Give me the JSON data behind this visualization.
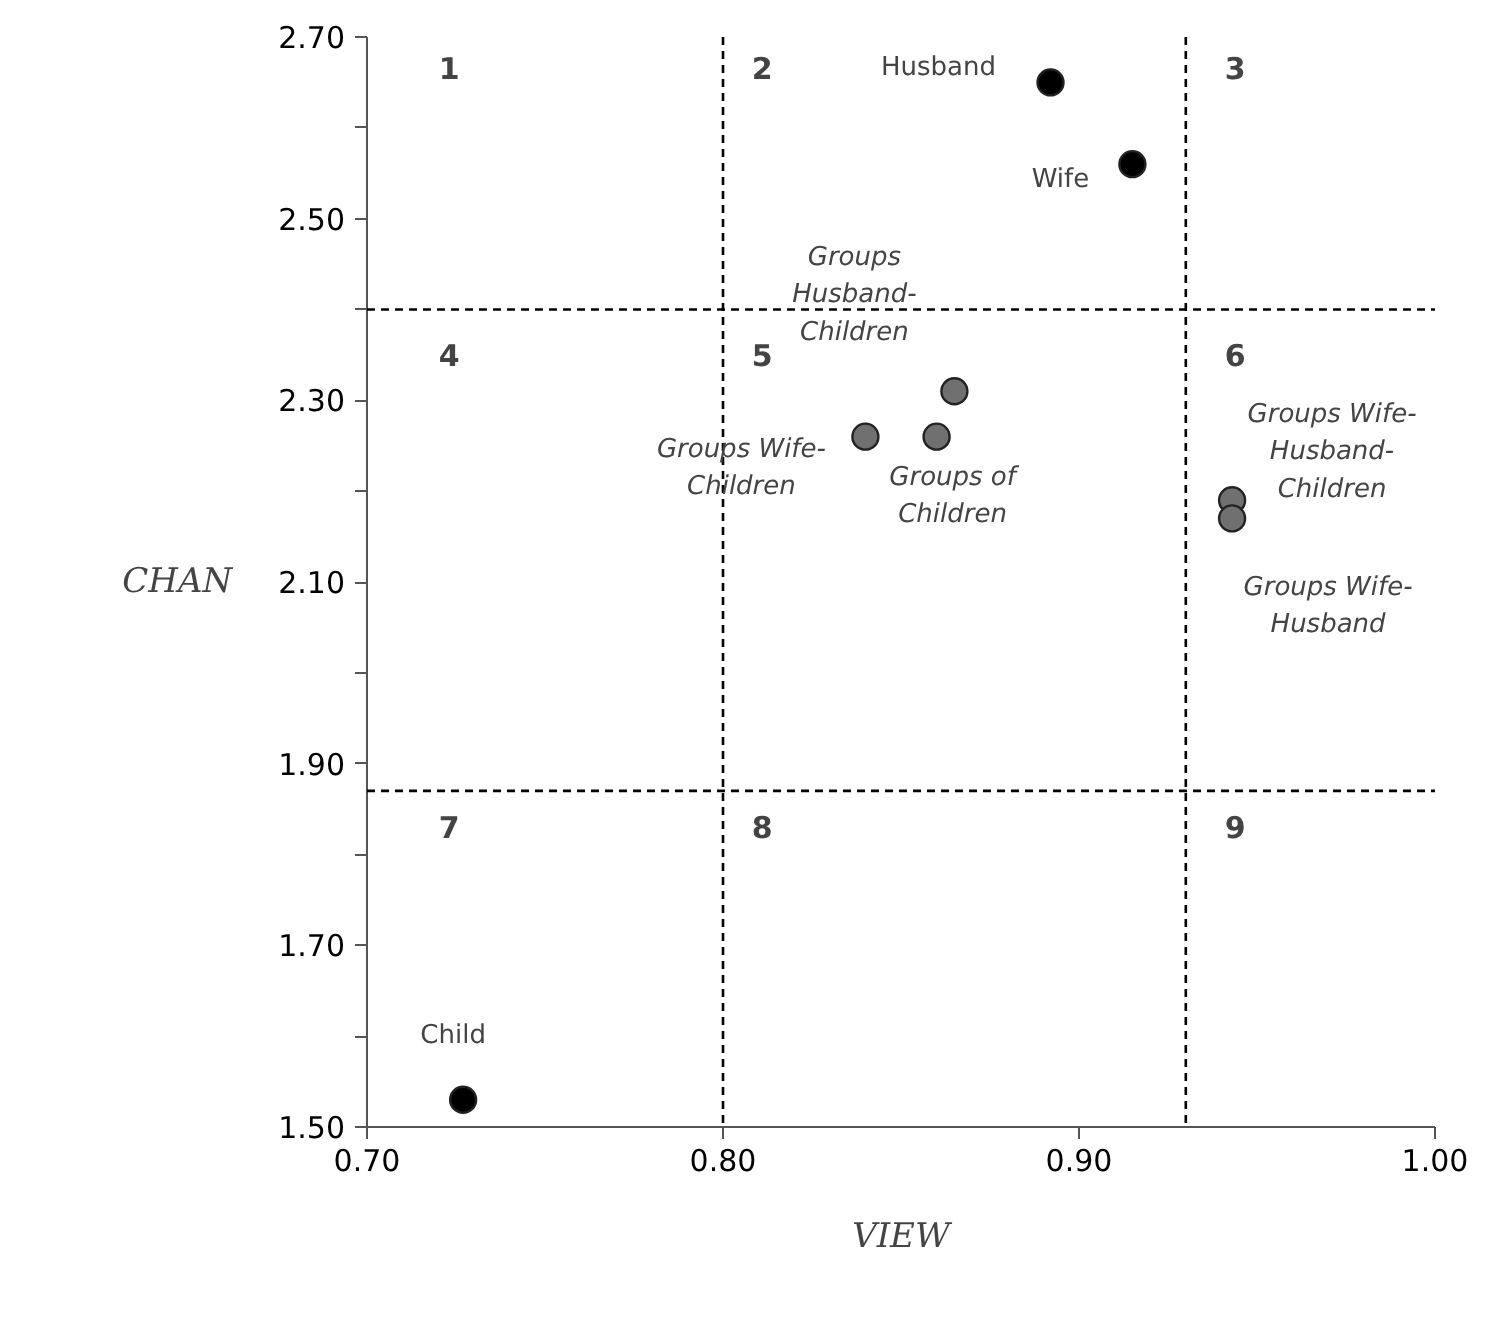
{
  "chart_data": {
    "type": "scatter",
    "xlabel": "VIEW",
    "ylabel": "CHAN",
    "xlim": [
      0.7,
      1.0
    ],
    "ylim": [
      1.5,
      2.7
    ],
    "xticks": [
      {
        "value": 0.7,
        "label": "0.70"
      },
      {
        "value": 0.8,
        "label": "0.80"
      },
      {
        "value": 0.9,
        "label": "0.90"
      },
      {
        "value": 1.0,
        "label": "1.00"
      }
    ],
    "yticks": [
      {
        "value": 1.5,
        "label": "1.50"
      },
      {
        "value": 1.6,
        "label": null
      },
      {
        "value": 1.7,
        "label": "1.70"
      },
      {
        "value": 1.8,
        "label": null
      },
      {
        "value": 1.9,
        "label": "1.90"
      },
      {
        "value": 2.0,
        "label": null
      },
      {
        "value": 2.1,
        "label": "2.10"
      },
      {
        "value": 2.2,
        "label": null
      },
      {
        "value": 2.3,
        "label": "2.30"
      },
      {
        "value": 2.4,
        "label": null
      },
      {
        "value": 2.5,
        "label": "2.50"
      },
      {
        "value": 2.6,
        "label": null
      },
      {
        "value": 2.7,
        "label": "2.70"
      }
    ],
    "grid": false,
    "marker": "circle",
    "series": [
      {
        "name": "Husband",
        "color": "#000000",
        "x": [
          0.892
        ],
        "values": [
          2.65
        ]
      },
      {
        "name": "Wife",
        "color": "#000000",
        "x": [
          0.915
        ],
        "values": [
          2.56
        ]
      },
      {
        "name": "Groups Husband-Children",
        "color": "#707070",
        "x": [
          0.865
        ],
        "values": [
          2.31
        ]
      },
      {
        "name": "Groups Wife-Children",
        "color": "#707070",
        "x": [
          0.84
        ],
        "values": [
          2.26
        ]
      },
      {
        "name": "Groups of Children",
        "color": "#707070",
        "x": [
          0.86
        ],
        "values": [
          2.26
        ]
      },
      {
        "name": "Groups Wife-Husband-Children",
        "color": "#707070",
        "x": [
          0.943
        ],
        "values": [
          2.19
        ]
      },
      {
        "name": "Groups Wife-Husband",
        "color": "#707070",
        "x": [
          0.943
        ],
        "values": [
          2.17
        ]
      },
      {
        "name": "Child",
        "color": "#000000",
        "x": [
          0.727
        ],
        "values": [
          1.53
        ]
      }
    ],
    "ref_lines": [
      {
        "axis": "x",
        "value": 0.8,
        "line_style": "dashed"
      },
      {
        "axis": "x",
        "value": 0.93,
        "line_style": "dashed"
      },
      {
        "axis": "y",
        "value": 2.4,
        "line_style": "dashed"
      },
      {
        "axis": "y",
        "value": 1.87,
        "line_style": "dashed"
      }
    ],
    "annotations": [
      "1",
      "2",
      "3",
      "4",
      "5",
      "6",
      "7",
      "8",
      "9"
    ]
  }
}
